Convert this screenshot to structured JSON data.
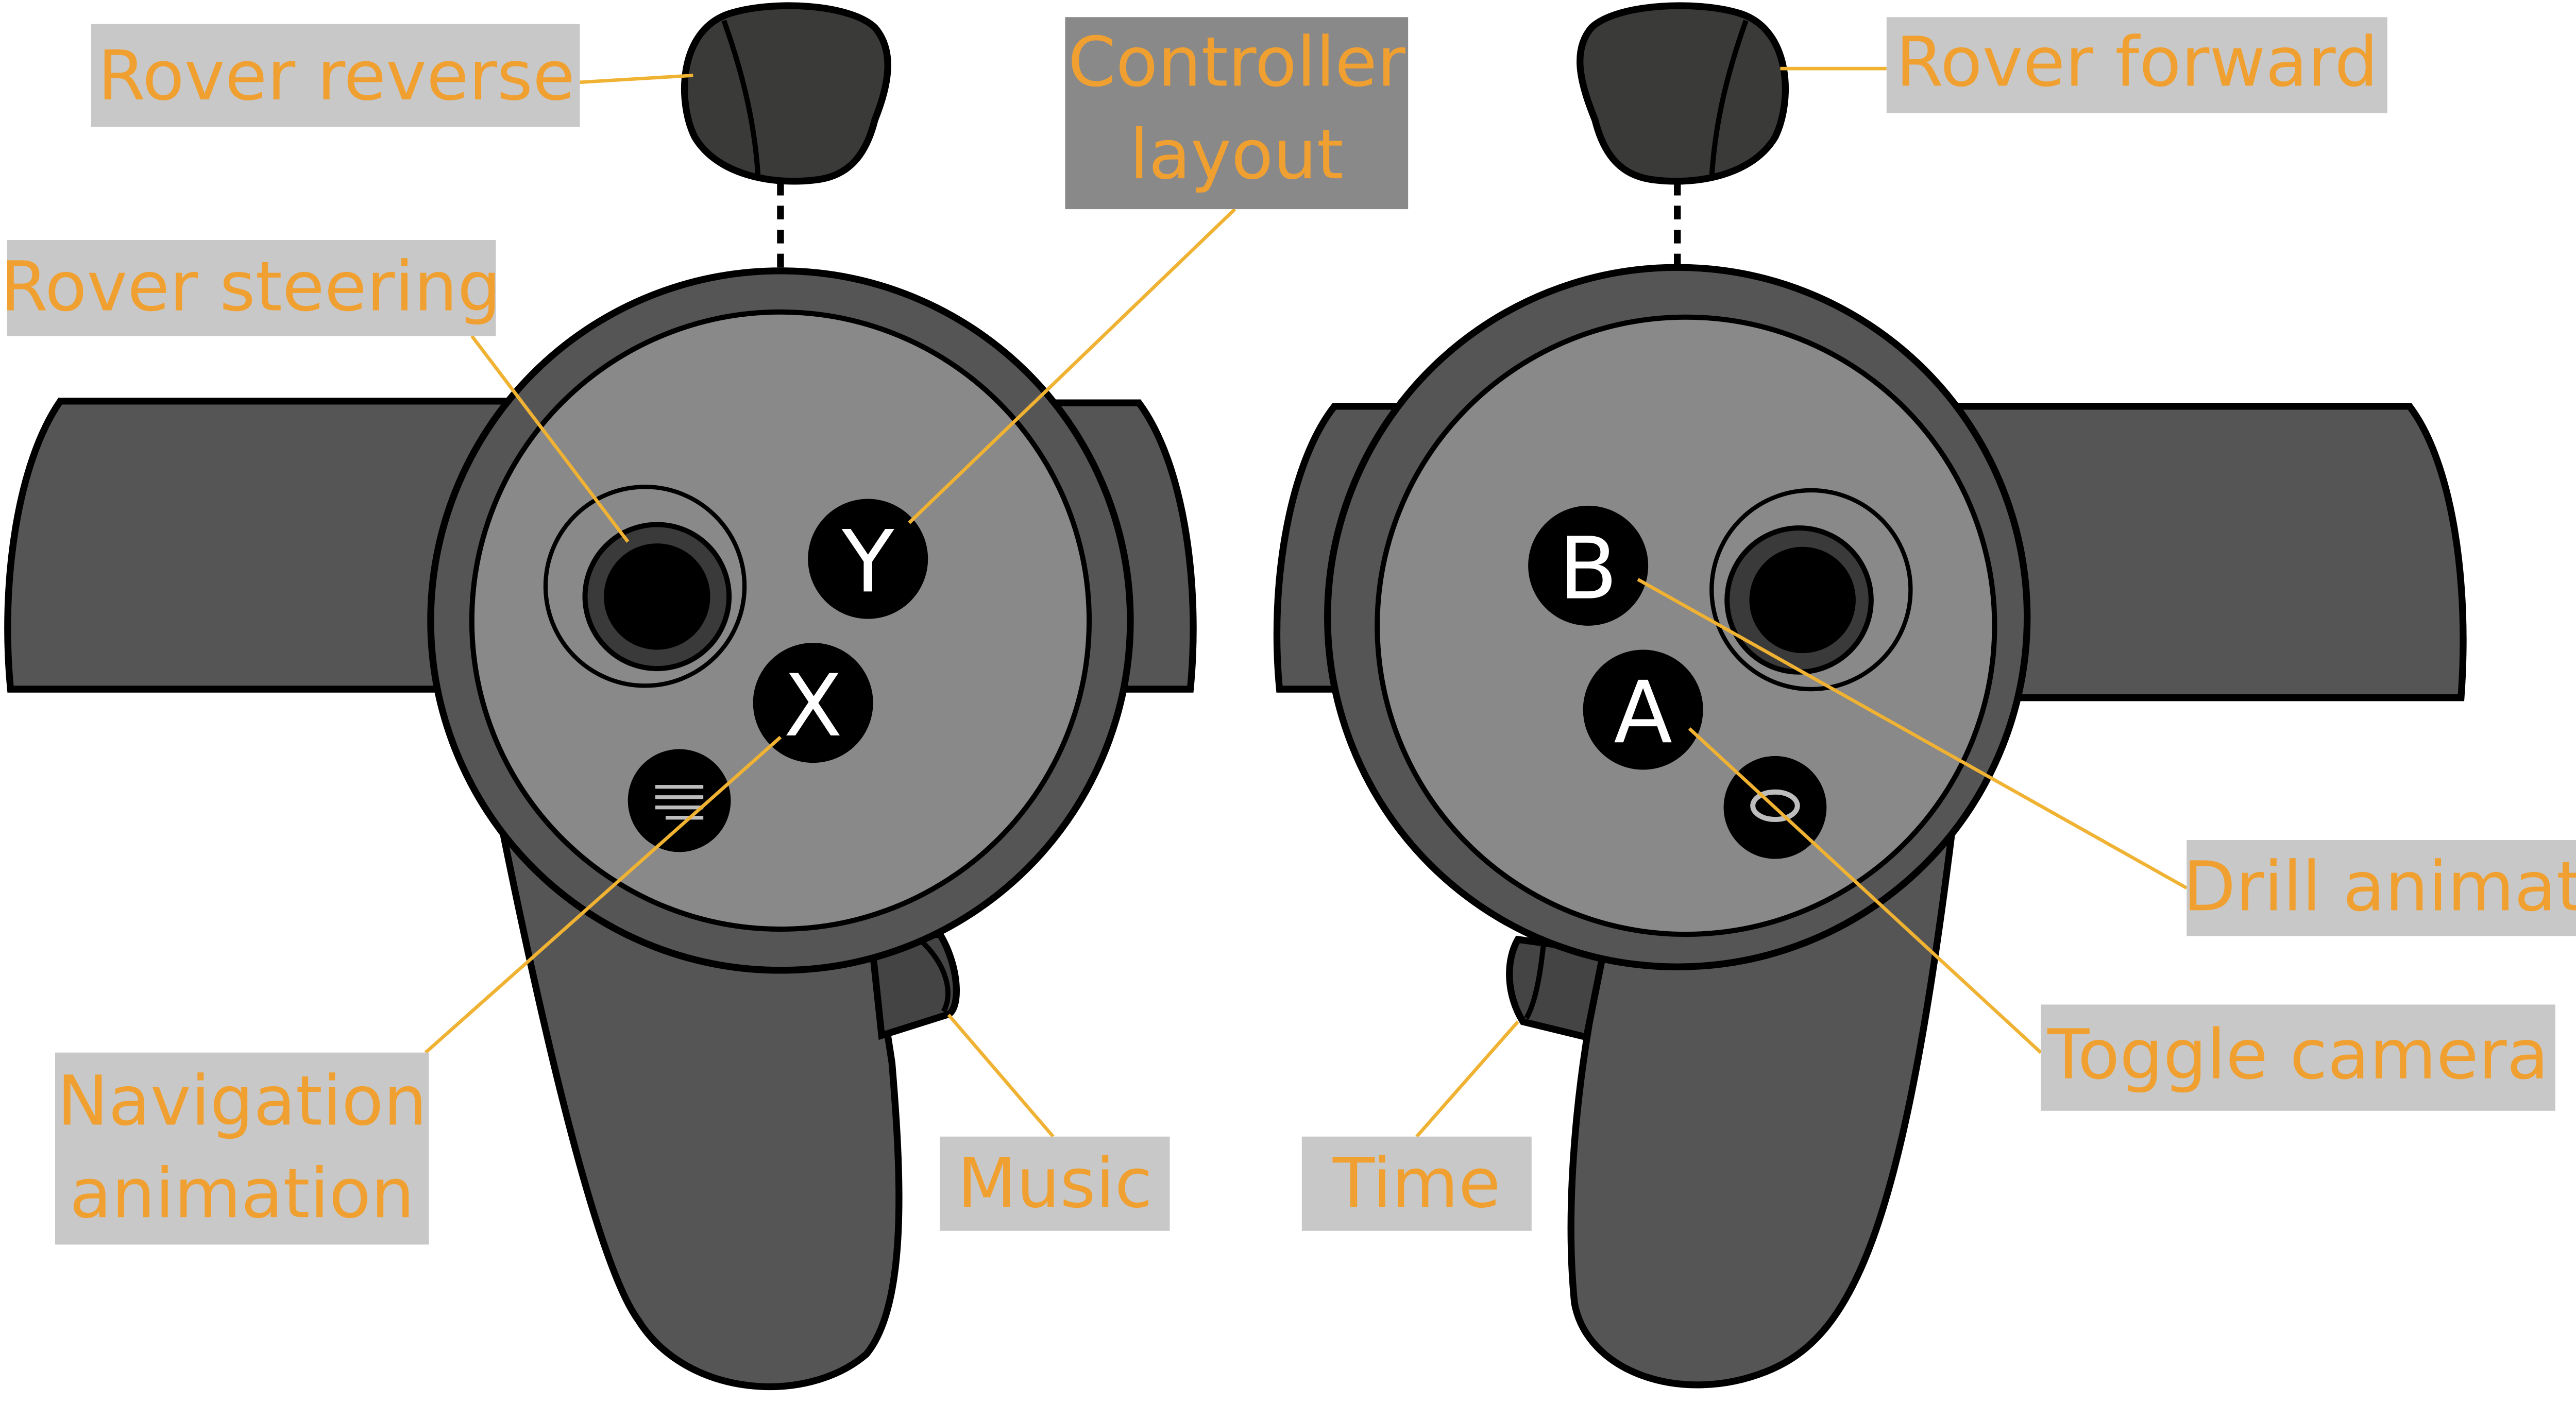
{
  "labels": {
    "rover_reverse": "Rover reverse",
    "rover_forward": "Rover forward",
    "controller_layout_line1": "Controller",
    "controller_layout_line2": "layout",
    "rover_steering": "Rover steering",
    "navigation_animation_line1": "Navigation",
    "navigation_animation_line2": "animation",
    "music": "Music",
    "time": "Time",
    "drill_animation": "Drill animation",
    "toggle_camera": "Toggle camera"
  },
  "buttons": {
    "y": "Y",
    "x": "X",
    "b": "B",
    "a": "A"
  },
  "icons": {
    "menu": "menu-icon",
    "oculus": "oculus-icon"
  },
  "colors": {
    "label_text": "#f0a030",
    "label_box": "#c8c8c8",
    "label_box_dark": "#898989",
    "leader_line": "#f0b232",
    "controller_dark": "#555555",
    "controller_face": "#898989",
    "button_fill": "#000000",
    "button_text": "#ffffff",
    "outline": "#000000"
  }
}
